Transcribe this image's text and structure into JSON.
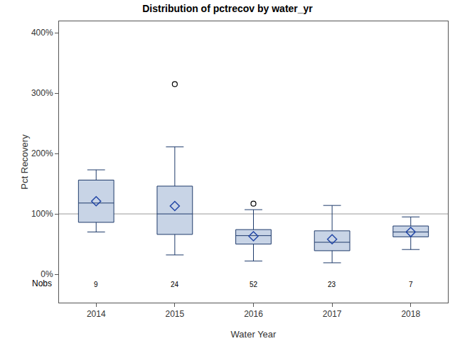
{
  "chart_data": {
    "type": "box",
    "title": "Distribution of pctrecov by water_yr",
    "x_label": "Water Year",
    "y_label": "Pct Recovery",
    "categories": [
      "2014",
      "2015",
      "2016",
      "2017",
      "2018"
    ],
    "q1": [
      86,
      66,
      50,
      39,
      62
    ],
    "median": [
      118,
      100,
      64,
      53,
      70
    ],
    "q3": [
      156,
      146,
      74,
      72,
      80
    ],
    "whisker_low": [
      70,
      32,
      22,
      19,
      41
    ],
    "whisker_high": [
      173,
      211,
      107,
      114,
      95
    ],
    "mean": [
      121,
      113,
      63,
      58,
      70
    ],
    "outliers": [
      [],
      [
        315
      ],
      [
        117
      ],
      [],
      []
    ],
    "nobs_label": "Nobs",
    "nobs": [
      9,
      24,
      52,
      23,
      7
    ],
    "color": "#c8d4e6",
    "reference_line": 100,
    "ylim": [
      -47,
      419
    ],
    "yticks": [
      {
        "value": 0,
        "label": "0%"
      },
      {
        "value": 100,
        "label": "100%"
      },
      {
        "value": 200,
        "label": "200%"
      },
      {
        "value": 300,
        "label": "300%"
      },
      {
        "value": 400,
        "label": "400%"
      }
    ],
    "grid": false
  }
}
